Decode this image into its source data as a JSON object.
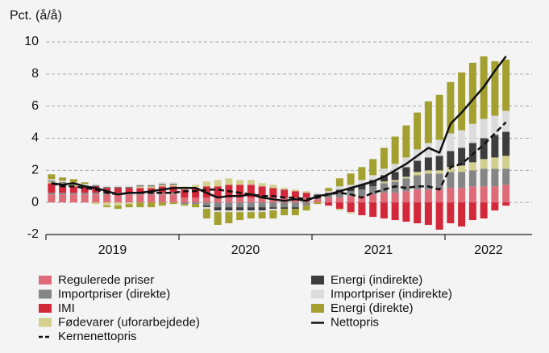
{
  "chart_data": {
    "type": "stacked-bar-line",
    "ylabel": "Pct. (å/å)",
    "ylim": [
      -2,
      10
    ],
    "yticks": [
      -2,
      0,
      2,
      4,
      6,
      8,
      10
    ],
    "grid": true,
    "x_group_labels": [
      "2019",
      "2020",
      "2021",
      "2022"
    ],
    "series": [
      {
        "name": "Regulerede priser",
        "color": "#e06b78",
        "values": [
          0.5,
          0.5,
          0.5,
          0.5,
          0.5,
          0.5,
          0.5,
          0.5,
          0.5,
          0.5,
          0.5,
          0.5,
          0.3,
          0.3,
          0.3,
          0.3,
          0.3,
          0.3,
          0.3,
          0.3,
          0.3,
          0.3,
          0.3,
          0.3,
          0.2,
          0.3,
          0.3,
          0.4,
          0.4,
          0.5,
          0.6,
          0.6,
          0.7,
          0.8,
          0.8,
          0.8,
          0.9,
          0.9,
          1.0,
          1.0,
          1.0,
          1.1
        ]
      },
      {
        "name": "Importpriser (direkte)",
        "color": "#858585",
        "values": [
          0.1,
          0.1,
          0.1,
          0.1,
          0.1,
          0.1,
          0.1,
          0.1,
          0.1,
          0.1,
          0.1,
          0.1,
          -0.1,
          -0.1,
          -0.2,
          -0.3,
          -0.3,
          -0.3,
          -0.3,
          -0.3,
          -0.3,
          -0.3,
          -0.3,
          -0.2,
          0.1,
          0.2,
          0.3,
          0.3,
          0.4,
          0.5,
          0.6,
          0.7,
          0.8,
          0.9,
          1.0,
          1.0,
          1.0,
          1.0,
          1.0,
          1.1,
          1.1,
          1.0
        ]
      },
      {
        "name": "IMI",
        "color": "#d3283a",
        "values": [
          0.6,
          0.5,
          0.4,
          0.4,
          0.4,
          0.3,
          0.3,
          0.3,
          0.3,
          0.3,
          0.4,
          0.4,
          0.5,
          0.6,
          0.7,
          0.7,
          0.8,
          0.8,
          0.8,
          0.7,
          0.6,
          0.5,
          0.4,
          0.3,
          0.1,
          -0.2,
          -0.4,
          -0.6,
          -0.8,
          -0.9,
          -1.0,
          -1.1,
          -1.2,
          -1.3,
          -1.4,
          -1.7,
          -1.3,
          -1.5,
          -1.1,
          -1.0,
          -0.5,
          -0.2
        ]
      },
      {
        "name": "Fødevarer (uforarbejdede)",
        "color": "#d3cf8f",
        "values": [
          0.1,
          0.1,
          0.1,
          0,
          -0.1,
          -0.2,
          -0.2,
          -0.1,
          0.1,
          0.1,
          0.1,
          0.1,
          0.2,
          0.2,
          0.3,
          0.4,
          0.4,
          0.3,
          0.3,
          0.2,
          0.2,
          0.1,
          0.1,
          0.1,
          0,
          0,
          -0.1,
          -0.1,
          0,
          0,
          0.1,
          0.1,
          0.1,
          0.2,
          0.2,
          0.2,
          0.3,
          0.4,
          0.5,
          0.6,
          0.7,
          0.8
        ]
      },
      {
        "name": "Energi (indirekte)",
        "color": "#3d3d3d",
        "values": [
          0.05,
          0.05,
          0.05,
          0.05,
          0.05,
          0.05,
          0.05,
          0.05,
          0.05,
          0.05,
          0.05,
          0.05,
          0,
          0,
          -0.1,
          -0.2,
          -0.2,
          -0.2,
          -0.2,
          -0.2,
          -0.1,
          -0.1,
          -0.1,
          0,
          0.1,
          0.1,
          0.2,
          0.2,
          0.3,
          0.4,
          0.4,
          0.5,
          0.6,
          0.7,
          0.8,
          0.9,
          1.0,
          1.1,
          1.2,
          1.3,
          1.4,
          1.5
        ]
      },
      {
        "name": "Importpriser (indirekte)",
        "color": "#dcdcdc",
        "values": [
          0.1,
          0.1,
          0.1,
          0.1,
          0.1,
          0.1,
          0.1,
          0.1,
          0.1,
          0.1,
          0.1,
          0.1,
          0,
          0,
          -0.1,
          -0.1,
          -0.1,
          -0.1,
          -0.1,
          -0.1,
          -0.1,
          0,
          0,
          0,
          0.1,
          0.1,
          0.2,
          0.2,
          0.3,
          0.3,
          0.4,
          0.5,
          0.6,
          0.7,
          0.9,
          1.0,
          1.1,
          1.1,
          1.2,
          1.2,
          1.2,
          1.3
        ]
      },
      {
        "name": "Energi (direkte)",
        "color": "#a3a030",
        "values": [
          0.3,
          0.2,
          0.2,
          0.1,
          0,
          -0.1,
          -0.2,
          -0.2,
          -0.3,
          -0.3,
          -0.2,
          -0.1,
          -0.1,
          -0.2,
          -0.6,
          -0.8,
          -0.7,
          -0.5,
          -0.4,
          -0.4,
          -0.5,
          -0.4,
          -0.4,
          -0.3,
          -0.1,
          0.2,
          0.5,
          0.7,
          0.8,
          1.0,
          1.3,
          1.7,
          2.0,
          2.3,
          2.6,
          2.8,
          3.2,
          3.6,
          3.8,
          3.9,
          3.4,
          3.2
        ]
      }
    ],
    "lines": [
      {
        "name": "Nettopris",
        "color": "#111111",
        "dashed": false,
        "values": [
          1.2,
          1.1,
          1.2,
          1.0,
          0.9,
          0.7,
          0.5,
          0.6,
          0.6,
          0.7,
          0.8,
          0.9,
          0.9,
          0.9,
          0.6,
          0.3,
          0.4,
          0.4,
          0.5,
          0.3,
          0.2,
          0.1,
          0.2,
          0.1,
          0.4,
          0.5,
          0.7,
          0.9,
          1.1,
          1.3,
          1.6,
          2.0,
          2.4,
          2.9,
          3.4,
          3.1,
          4.9,
          5.6,
          6.4,
          7.2,
          8.2,
          9.1
        ]
      },
      {
        "name": "Kernenettopris",
        "color": "#111111",
        "dashed": true,
        "values": [
          1.2,
          1.0,
          1.0,
          0.9,
          0.8,
          0.6,
          0.5,
          0.6,
          0.6,
          0.6,
          0.6,
          0.6,
          0.7,
          0.7,
          0.8,
          0.8,
          0.7,
          0.6,
          0.5,
          0.4,
          0.4,
          0.3,
          0.3,
          0.2,
          0.3,
          0.5,
          0.6,
          0.5,
          0.3,
          0.6,
          0.8,
          1.0,
          0.9,
          1.0,
          1.0,
          0.8,
          2.2,
          2.4,
          3.0,
          3.6,
          4.3,
          5.0
        ]
      }
    ]
  }
}
